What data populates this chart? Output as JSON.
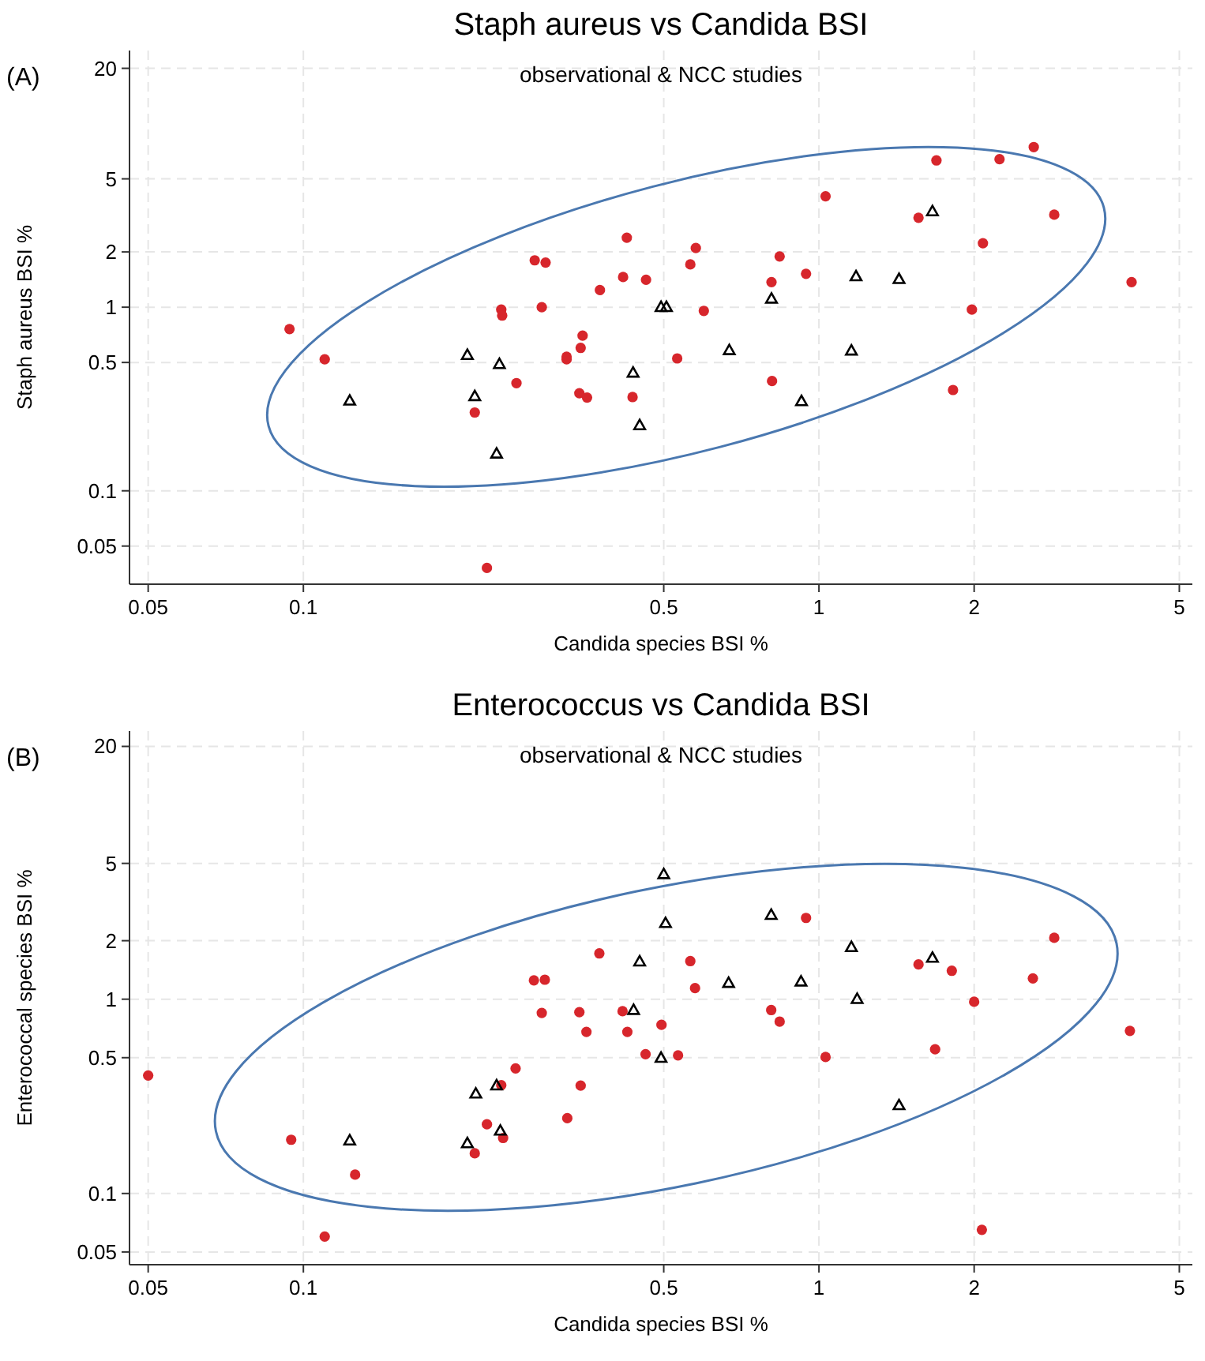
{
  "chart_data": [
    {
      "type": "scatter",
      "title": "Staph aureus vs Candida BSI",
      "subtitle": "observational & NCC studies",
      "xlabel": "Candida species BSI %",
      "ylabel": "Staph aureus BSI %",
      "annotations": [
        "(A)"
      ],
      "log": "xy",
      "grid": true,
      "xlim": [
        0.046,
        5.3
      ],
      "ylim": [
        0.031,
        25
      ],
      "xticks": [
        0.05,
        0.1,
        0.5,
        1,
        2,
        5
      ],
      "yticks": [
        0.05,
        0.1,
        0.5,
        1,
        2,
        5,
        20
      ],
      "series": [
        {
          "color": "#d7262c",
          "marker": "circle",
          "x": [
            0.094,
            0.11,
            0.215,
            0.242,
            0.243,
            0.259,
            0.281,
            0.295,
            0.29,
            0.324,
            0.324,
            0.345,
            0.348,
            0.343,
            0.355,
            0.376,
            0.417,
            0.424,
            0.462,
            0.435,
            0.227,
            0.563,
            0.577,
            0.598,
            0.531,
            0.809,
            0.839,
            0.944,
            0.811,
            1.03,
            1.56,
            1.69,
            2.08,
            1.98,
            1.82,
            2.24,
            2.61,
            2.86,
            4.04
          ],
          "values": [
            0.76,
            0.52,
            0.267,
            0.97,
            0.9,
            0.386,
            1.8,
            1.75,
            1.0,
            0.537,
            0.52,
            0.6,
            0.7,
            0.34,
            0.322,
            1.24,
            1.46,
            2.39,
            1.41,
            0.324,
            0.038,
            1.71,
            2.1,
            0.955,
            0.526,
            1.37,
            1.89,
            1.52,
            0.396,
            4.02,
            3.07,
            6.3,
            2.23,
            0.97,
            0.354,
            6.4,
            7.45,
            3.19,
            1.37
          ]
        },
        {
          "color": "#000000",
          "marker": "triangle",
          "x": [
            0.123,
            0.208,
            0.215,
            0.24,
            0.237,
            0.436,
            0.449,
            0.494,
            0.506,
            0.809,
            0.67,
            1.156,
            0.925,
            1.18,
            1.43,
            1.66
          ],
          "values": [
            0.309,
            0.548,
            0.327,
            0.489,
            0.159,
            0.439,
            0.227,
            1.0,
            1.0,
            1.11,
            0.582,
            0.579,
            0.307,
            1.47,
            1.42,
            3.32
          ]
        }
      ]
    },
    {
      "type": "scatter",
      "title": "Enterococcus vs Candida BSI",
      "subtitle": "observational & NCC studies",
      "xlabel": "Candida species BSI %",
      "ylabel": "Enterococcal species BSI %",
      "annotations": [
        "(B)"
      ],
      "log": "xy",
      "grid": true,
      "xlim": [
        0.046,
        5.3
      ],
      "ylim": [
        0.043,
        24
      ],
      "xticks": [
        0.05,
        0.1,
        0.5,
        1,
        2,
        5
      ],
      "yticks": [
        0.05,
        0.1,
        0.5,
        1,
        2,
        5,
        20
      ],
      "series": [
        {
          "color": "#d7262c",
          "marker": "circle",
          "x": [
            0.05,
            0.0947,
            0.126,
            0.11,
            0.215,
            0.227,
            0.244,
            0.242,
            0.258,
            0.28,
            0.294,
            0.29,
            0.325,
            0.345,
            0.343,
            0.354,
            0.375,
            0.416,
            0.425,
            0.461,
            0.495,
            0.533,
            0.563,
            0.575,
            0.808,
            0.839,
            0.944,
            1.03,
            1.56,
            1.81,
            1.68,
            2.0,
            2.07,
            2.6,
            2.86,
            4.01
          ],
          "values": [
            0.405,
            0.189,
            0.125,
            0.06,
            0.161,
            0.227,
            0.193,
            0.361,
            0.44,
            1.25,
            1.26,
            0.85,
            0.244,
            0.359,
            0.857,
            0.679,
            1.72,
            0.867,
            0.679,
            0.521,
            0.738,
            0.514,
            1.57,
            1.14,
            0.879,
            0.767,
            2.62,
            0.504,
            1.51,
            1.4,
            0.552,
            0.97,
            0.065,
            1.28,
            2.07,
            0.687
          ]
        },
        {
          "color": "#000000",
          "marker": "triangle",
          "x": [
            0.123,
            0.208,
            0.216,
            0.237,
            0.241,
            0.437,
            0.449,
            0.5,
            0.504,
            0.494,
            0.668,
            0.808,
            0.923,
            1.156,
            1.186,
            1.66,
            1.43
          ],
          "values": [
            0.187,
            0.181,
            0.326,
            0.359,
            0.21,
            0.878,
            1.56,
            4.39,
            2.46,
            0.498,
            1.21,
            2.71,
            1.23,
            1.85,
            1.0,
            1.63,
            0.284
          ]
        }
      ]
    }
  ]
}
